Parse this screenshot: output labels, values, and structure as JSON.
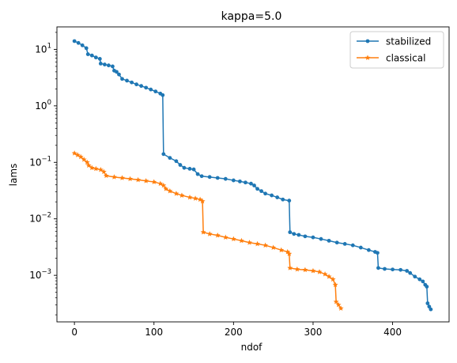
{
  "chart_data": {
    "type": "line",
    "title": "kappa=5.0",
    "xlabel": "ndof",
    "ylabel": "lams",
    "yscale": "log",
    "xlim": [
      -22,
      471
    ],
    "ylim": [
      0.00015,
      25
    ],
    "x_ticks": [
      {
        "value": 0,
        "label": "0"
      },
      {
        "value": 100,
        "label": "100"
      },
      {
        "value": 200,
        "label": "200"
      },
      {
        "value": 300,
        "label": "300"
      },
      {
        "value": 400,
        "label": "400"
      }
    ],
    "y_ticks": [
      {
        "value": 0.001,
        "base": "10",
        "exp": "−3"
      },
      {
        "value": 0.01,
        "base": "10",
        "exp": "−2"
      },
      {
        "value": 0.1,
        "base": "10",
        "exp": "−1"
      },
      {
        "value": 1,
        "base": "10",
        "exp": "0"
      },
      {
        "value": 10,
        "base": "10",
        "exp": "1"
      }
    ],
    "grid": false,
    "legend_position": "top-right",
    "series": [
      {
        "name": "stabilized",
        "color": "#1f77b4",
        "marker": "dot",
        "points": [
          [
            0,
            14.0
          ],
          [
            5,
            13.0
          ],
          [
            10,
            11.8
          ],
          [
            15,
            10.5
          ],
          [
            17,
            8.2
          ],
          [
            22,
            7.8
          ],
          [
            27,
            7.2
          ],
          [
            32,
            6.8
          ],
          [
            33,
            5.6
          ],
          [
            38,
            5.4
          ],
          [
            43,
            5.2
          ],
          [
            48,
            5.0
          ],
          [
            50,
            4.2
          ],
          [
            53,
            4.0
          ],
          [
            56,
            3.6
          ],
          [
            60,
            3.0
          ],
          [
            66,
            2.8
          ],
          [
            72,
            2.6
          ],
          [
            78,
            2.4
          ],
          [
            84,
            2.25
          ],
          [
            90,
            2.1
          ],
          [
            96,
            1.95
          ],
          [
            102,
            1.8
          ],
          [
            108,
            1.65
          ],
          [
            111,
            1.55
          ],
          [
            112,
            0.14
          ],
          [
            120,
            0.12
          ],
          [
            128,
            0.105
          ],
          [
            133,
            0.09
          ],
          [
            138,
            0.08
          ],
          [
            145,
            0.077
          ],
          [
            150,
            0.075
          ],
          [
            155,
            0.062
          ],
          [
            160,
            0.057
          ],
          [
            170,
            0.055
          ],
          [
            180,
            0.053
          ],
          [
            190,
            0.051
          ],
          [
            200,
            0.048
          ],
          [
            208,
            0.046
          ],
          [
            215,
            0.044
          ],
          [
            222,
            0.042
          ],
          [
            226,
            0.039
          ],
          [
            230,
            0.034
          ],
          [
            235,
            0.031
          ],
          [
            240,
            0.028
          ],
          [
            248,
            0.026
          ],
          [
            255,
            0.024
          ],
          [
            262,
            0.022
          ],
          [
            270,
            0.021
          ],
          [
            271,
            0.0058
          ],
          [
            276,
            0.0054
          ],
          [
            282,
            0.0052
          ],
          [
            290,
            0.0049
          ],
          [
            300,
            0.0047
          ],
          [
            310,
            0.0044
          ],
          [
            320,
            0.0041
          ],
          [
            330,
            0.0038
          ],
          [
            340,
            0.0036
          ],
          [
            350,
            0.0034
          ],
          [
            360,
            0.0031
          ],
          [
            370,
            0.0028
          ],
          [
            378,
            0.0026
          ],
          [
            381,
            0.0025
          ],
          [
            382,
            0.00135
          ],
          [
            390,
            0.0013
          ],
          [
            400,
            0.00127
          ],
          [
            410,
            0.00125
          ],
          [
            418,
            0.0012
          ],
          [
            422,
            0.0011
          ],
          [
            428,
            0.00095
          ],
          [
            434,
            0.00085
          ],
          [
            438,
            0.00078
          ],
          [
            441,
            0.00068
          ],
          [
            443,
            0.00063
          ],
          [
            444,
            0.00032
          ],
          [
            446,
            0.00028
          ],
          [
            448,
            0.00025
          ]
        ]
      },
      {
        "name": "classical",
        "color": "#ff7f0e",
        "marker": "star",
        "points": [
          [
            0,
            0.145
          ],
          [
            4,
            0.135
          ],
          [
            8,
            0.125
          ],
          [
            12,
            0.112
          ],
          [
            16,
            0.1
          ],
          [
            18,
            0.088
          ],
          [
            22,
            0.08
          ],
          [
            27,
            0.077
          ],
          [
            33,
            0.074
          ],
          [
            37,
            0.068
          ],
          [
            40,
            0.058
          ],
          [
            50,
            0.055
          ],
          [
            60,
            0.053
          ],
          [
            70,
            0.051
          ],
          [
            80,
            0.049
          ],
          [
            90,
            0.047
          ],
          [
            100,
            0.045
          ],
          [
            108,
            0.042
          ],
          [
            112,
            0.039
          ],
          [
            115,
            0.034
          ],
          [
            120,
            0.031
          ],
          [
            128,
            0.028
          ],
          [
            135,
            0.026
          ],
          [
            145,
            0.024
          ],
          [
            152,
            0.023
          ],
          [
            158,
            0.022
          ],
          [
            161,
            0.0205
          ],
          [
            162,
            0.0058
          ],
          [
            170,
            0.0054
          ],
          [
            180,
            0.0051
          ],
          [
            190,
            0.0047
          ],
          [
            200,
            0.0044
          ],
          [
            210,
            0.0041
          ],
          [
            220,
            0.0038
          ],
          [
            230,
            0.0036
          ],
          [
            240,
            0.0034
          ],
          [
            250,
            0.0031
          ],
          [
            260,
            0.0028
          ],
          [
            268,
            0.0026
          ],
          [
            270,
            0.0024
          ],
          [
            271,
            0.00135
          ],
          [
            280,
            0.00128
          ],
          [
            290,
            0.00125
          ],
          [
            300,
            0.0012
          ],
          [
            308,
            0.00115
          ],
          [
            315,
            0.00105
          ],
          [
            320,
            0.00095
          ],
          [
            325,
            0.00085
          ],
          [
            328,
            0.00068
          ],
          [
            329,
            0.00034
          ],
          [
            332,
            0.0003
          ],
          [
            335,
            0.00026
          ]
        ]
      }
    ]
  }
}
